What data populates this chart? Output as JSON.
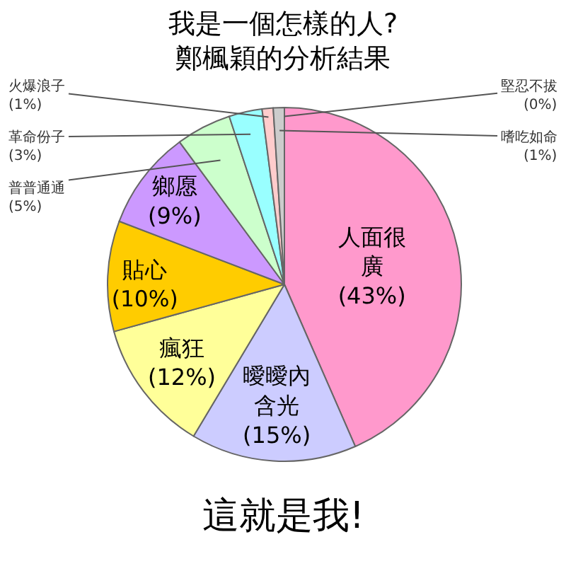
{
  "chart_data": {
    "type": "pie",
    "title": "我是一個怎樣的人?\n鄭楓穎的分析結果",
    "categories": [
      "人面很廣",
      "曖曖內含光",
      "瘋狂",
      "貼心",
      "鄉愿",
      "普普通通",
      "革命份子",
      "火爆浪子",
      "嗜吃如命",
      "堅忍不拔"
    ],
    "values": [
      43,
      15,
      12,
      10,
      9,
      5,
      3,
      1,
      1,
      0
    ],
    "colors": [
      "#ff99cc",
      "#ccccff",
      "#ffff99",
      "#ffcc00",
      "#cc99ff",
      "#ccffcc",
      "#99ffff",
      "#ffcccc",
      "#cccccc",
      "#99ccff"
    ],
    "value_labels": [
      "(43%)",
      "(15%)",
      "(12%)",
      "(10%)",
      "(9%)",
      "(5%)",
      "(3%)",
      "(1%)",
      "(1%)",
      "(0%)"
    ],
    "annotations": [
      "這就是我!"
    ]
  }
}
